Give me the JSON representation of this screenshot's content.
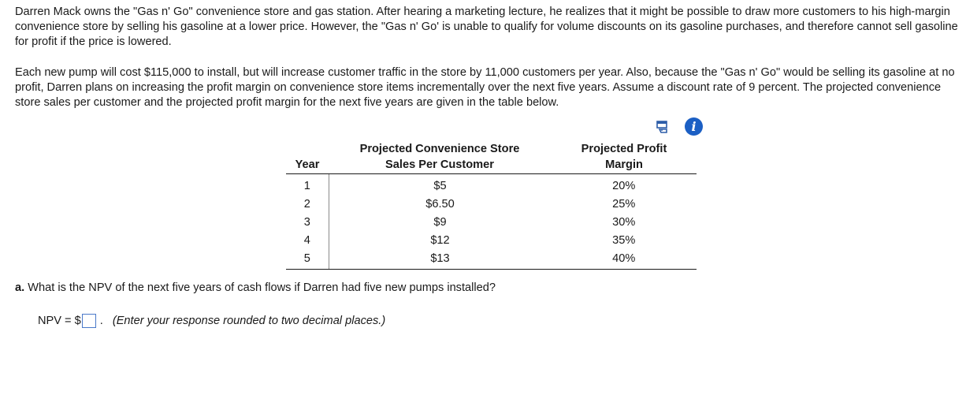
{
  "problem": {
    "paragraph1": "Darren Mack owns the \"Gas n' Go\" convenience store and gas station. After hearing a marketing lecture, he realizes that it might be possible to draw more customers to his high-margin convenience store by selling his gasoline at a lower price. However, the \"Gas n' Go' is unable to qualify for volume discounts on its gasoline purchases, and therefore cannot sell gasoline for profit if the price is lowered.",
    "paragraph2": "Each new pump will cost $115,000 to install, but will increase customer traffic in the store by 11,000 customers per year. Also, because the \"Gas n' Go\" would be selling its gasoline at no profit, Darren plans on increasing the profit margin on convenience store items incrementally over the next five years. Assume a discount rate of 9 percent. The projected convenience store sales per customer and the projected profit margin for the next five years are given in the table below."
  },
  "icons": {
    "print": "print-icon",
    "info": "info-icon",
    "info_glyph": "i"
  },
  "table": {
    "headers": {
      "year": "Year",
      "sales_line1": "Projected Convenience Store",
      "sales_line2": "Sales Per Customer",
      "margin_line1": "Projected Profit",
      "margin_line2": "Margin"
    },
    "rows": [
      {
        "year": "1",
        "sales": "$5",
        "margin": "20%"
      },
      {
        "year": "2",
        "sales": "$6.50",
        "margin": "25%"
      },
      {
        "year": "3",
        "sales": "$9",
        "margin": "30%"
      },
      {
        "year": "4",
        "sales": "$12",
        "margin": "35%"
      },
      {
        "year": "5",
        "sales": "$13",
        "margin": "40%"
      }
    ]
  },
  "question": {
    "label": "a.",
    "text": " What is the NPV of the next five years of cash flows if Darren had five new pumps installed?",
    "npv_prefix": "NPV = $",
    "npv_value": "",
    "npv_suffix": ".",
    "hint": "(Enter your response rounded to two decimal places.)"
  }
}
